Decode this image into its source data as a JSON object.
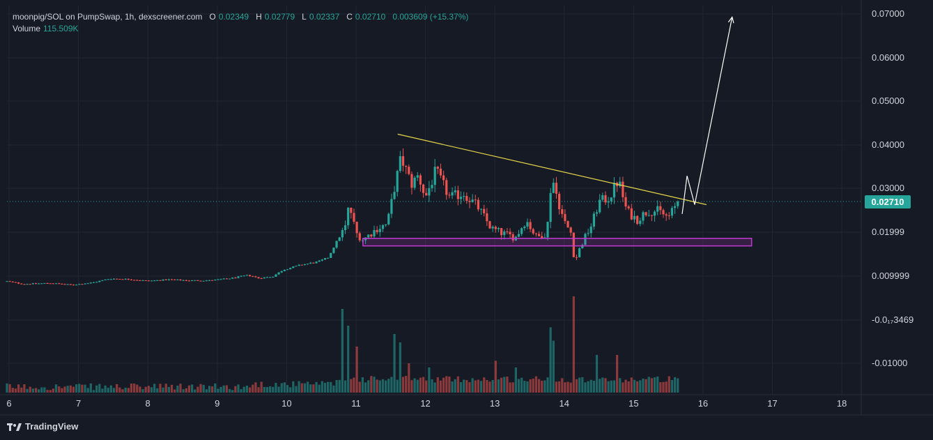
{
  "legend": {
    "symbol": "moonpig/SOL on PumpSwap, 1h, dexscreener.com",
    "open_label": "O",
    "open": "0.02349",
    "high_label": "H",
    "high": "0.02779",
    "low_label": "L",
    "low": "0.02337",
    "close_label": "C",
    "close": "0.02710",
    "change": "0.003609 (+15.37%)",
    "volume_label": "Volume",
    "volume": "115.509K"
  },
  "last_price_label": "0.02710",
  "brand": "TradingView",
  "colors": {
    "background": "#161a25",
    "up": "#26a69a",
    "down": "#ef5350",
    "trendline": "#e6d64a",
    "support_zone": "#c13bd0",
    "projection": "#ffffff",
    "grid": "#232733"
  },
  "chart_data": {
    "type": "candlestick",
    "x_tick_labels": [
      "6",
      "7",
      "8",
      "9",
      "10",
      "11",
      "12",
      "13",
      "14",
      "15",
      "16",
      "17",
      "18"
    ],
    "y_tick_labels": [
      "0.07000",
      "0.06000",
      "0.05000",
      "0.04000",
      "0.03000",
      "0.01999",
      "0.009999",
      "-0.0₁₇3469",
      "-0.01000"
    ],
    "y_range": [
      -0.0163,
      0.0713
    ],
    "x_range_days": [
      5.97,
      18.27
    ],
    "current_price": 0.0271,
    "ohlc_anchors": [
      {
        "day": 5.9,
        "close": 0.0093
      },
      {
        "day": 6.2,
        "close": 0.0085
      },
      {
        "day": 6.6,
        "close": 0.0087
      },
      {
        "day": 6.9,
        "close": 0.0083
      },
      {
        "day": 7.2,
        "close": 0.0088
      },
      {
        "day": 7.45,
        "close": 0.0097
      },
      {
        "day": 7.7,
        "close": 0.0096
      },
      {
        "day": 8.0,
        "close": 0.0092
      },
      {
        "day": 8.3,
        "close": 0.0095
      },
      {
        "day": 8.6,
        "close": 0.0093
      },
      {
        "day": 8.9,
        "close": 0.0093
      },
      {
        "day": 9.2,
        "close": 0.0098
      },
      {
        "day": 9.45,
        "close": 0.0105
      },
      {
        "day": 9.6,
        "close": 0.0098
      },
      {
        "day": 9.8,
        "close": 0.0102
      },
      {
        "day": 9.95,
        "close": 0.0117
      },
      {
        "day": 10.2,
        "close": 0.0128
      },
      {
        "day": 10.45,
        "close": 0.0135
      },
      {
        "day": 10.6,
        "close": 0.0145
      },
      {
        "day": 10.7,
        "close": 0.0175
      },
      {
        "day": 10.85,
        "close": 0.0215
      },
      {
        "day": 10.9,
        "close": 0.0265
      },
      {
        "day": 11.0,
        "close": 0.02
      },
      {
        "day": 11.1,
        "close": 0.0185
      },
      {
        "day": 11.3,
        "close": 0.021
      },
      {
        "day": 11.45,
        "close": 0.022
      },
      {
        "day": 11.55,
        "close": 0.03
      },
      {
        "day": 11.65,
        "close": 0.037
      },
      {
        "day": 11.8,
        "close": 0.031
      },
      {
        "day": 11.9,
        "close": 0.033
      },
      {
        "day": 12.0,
        "close": 0.028
      },
      {
        "day": 12.15,
        "close": 0.034
      },
      {
        "day": 12.35,
        "close": 0.028
      },
      {
        "day": 12.55,
        "close": 0.029
      },
      {
        "day": 12.75,
        "close": 0.026
      },
      {
        "day": 12.95,
        "close": 0.021
      },
      {
        "day": 13.1,
        "close": 0.02
      },
      {
        "day": 13.3,
        "close": 0.019
      },
      {
        "day": 13.45,
        "close": 0.023
      },
      {
        "day": 13.6,
        "close": 0.019
      },
      {
        "day": 13.75,
        "close": 0.02
      },
      {
        "day": 13.82,
        "close": 0.033
      },
      {
        "day": 13.9,
        "close": 0.028
      },
      {
        "day": 14.0,
        "close": 0.0225
      },
      {
        "day": 14.1,
        "close": 0.02
      },
      {
        "day": 14.15,
        "close": 0.0135
      },
      {
        "day": 14.25,
        "close": 0.0175
      },
      {
        "day": 14.4,
        "close": 0.022
      },
      {
        "day": 14.5,
        "close": 0.027
      },
      {
        "day": 14.65,
        "close": 0.028
      },
      {
        "day": 14.78,
        "close": 0.032
      },
      {
        "day": 14.9,
        "close": 0.025
      },
      {
        "day": 15.05,
        "close": 0.023
      },
      {
        "day": 15.2,
        "close": 0.025
      },
      {
        "day": 15.35,
        "close": 0.025
      },
      {
        "day": 15.5,
        "close": 0.0235
      },
      {
        "day": 15.65,
        "close": 0.0271
      }
    ],
    "volume_spikes": [
      {
        "day": 10.8,
        "value": 1.0
      },
      {
        "day": 10.9,
        "value": 0.8
      },
      {
        "day": 11.0,
        "value": 0.55
      },
      {
        "day": 11.55,
        "value": 0.7
      },
      {
        "day": 11.65,
        "value": 0.6
      },
      {
        "day": 11.75,
        "value": 0.35
      },
      {
        "day": 12.05,
        "value": 0.3
      },
      {
        "day": 13.0,
        "value": 0.38
      },
      {
        "day": 13.3,
        "value": 0.3
      },
      {
        "day": 13.8,
        "value": 0.78
      },
      {
        "day": 13.85,
        "value": 0.62
      },
      {
        "day": 14.15,
        "value": 1.15
      },
      {
        "day": 14.45,
        "value": 0.45
      },
      {
        "day": 14.78,
        "value": 0.45
      }
    ],
    "annotations": {
      "trendline": {
        "from": {
          "day": 11.6,
          "price": 0.0423
        },
        "to": {
          "day": 16.05,
          "price": 0.0264
        }
      },
      "support_zone": {
        "day_from": 11.1,
        "day_to": 16.7,
        "price_low": 0.0171,
        "price_high": 0.0188
      },
      "projection_path": [
        {
          "day": 15.7,
          "price": 0.0243
        },
        {
          "day": 15.77,
          "price": 0.0329
        },
        {
          "day": 15.88,
          "price": 0.0264
        },
        {
          "day": 16.42,
          "price": 0.0687
        }
      ]
    }
  }
}
